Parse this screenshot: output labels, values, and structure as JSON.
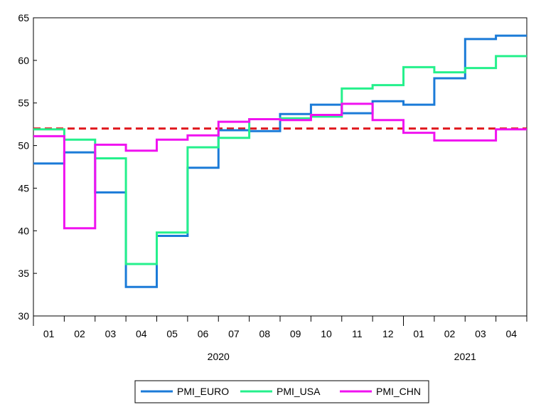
{
  "chart_data": {
    "type": "line",
    "step": true,
    "x": [
      "2020-01",
      "2020-02",
      "2020-03",
      "2020-04",
      "2020-05",
      "2020-06",
      "2020-07",
      "2020-08",
      "2020-09",
      "2020-10",
      "2020-11",
      "2020-12",
      "2021-01",
      "2021-02",
      "2021-03",
      "2021-04"
    ],
    "month_labels": [
      "01",
      "02",
      "03",
      "04",
      "05",
      "06",
      "07",
      "08",
      "09",
      "10",
      "11",
      "12",
      "01",
      "02",
      "03",
      "04"
    ],
    "year_labels": [
      {
        "text": "2020",
        "month_index": 5.5
      },
      {
        "text": "2021",
        "month_index": 13.5
      }
    ],
    "ylim": [
      30,
      65
    ],
    "yticks": [
      30,
      35,
      40,
      45,
      50,
      55,
      60,
      65
    ],
    "grid": false,
    "reference_line": {
      "y": 52,
      "color": "#e0191f",
      "style": "dashed"
    },
    "series": [
      {
        "name": "PMI_EURO",
        "color": "#1b7bd8",
        "values": [
          47.9,
          49.2,
          44.5,
          33.4,
          39.4,
          47.4,
          51.8,
          51.7,
          53.7,
          54.8,
          53.8,
          55.2,
          54.8,
          57.9,
          62.5,
          62.9
        ]
      },
      {
        "name": "PMI_USA",
        "color": "#25f08c",
        "values": [
          51.9,
          50.7,
          48.5,
          36.1,
          39.8,
          49.8,
          50.9,
          53.1,
          53.2,
          53.4,
          56.7,
          57.1,
          59.2,
          58.6,
          59.1,
          60.5
        ]
      },
      {
        "name": "PMI_CHN",
        "color": "#f012f0",
        "values": [
          51.1,
          40.3,
          50.1,
          49.4,
          50.7,
          51.2,
          52.8,
          53.1,
          53.0,
          53.6,
          54.9,
          53.0,
          51.5,
          50.6,
          50.6,
          51.9
        ]
      }
    ],
    "legend": {
      "position": "bottom-center"
    }
  }
}
